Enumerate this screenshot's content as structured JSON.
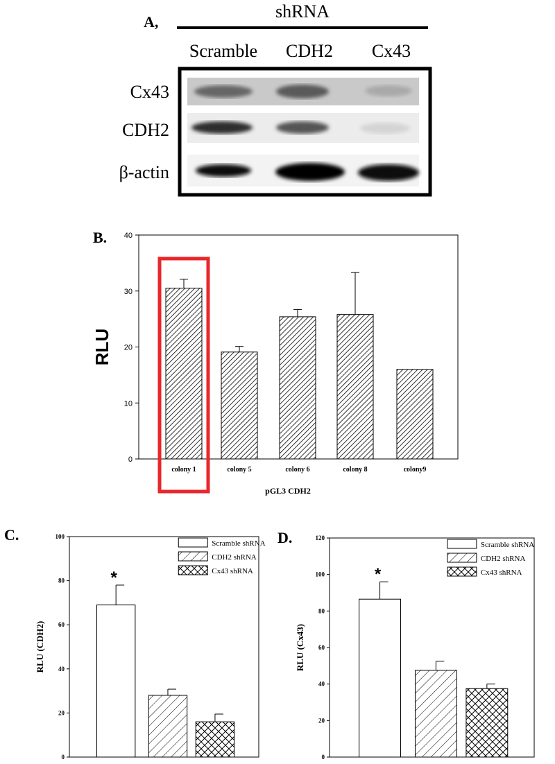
{
  "panel_a": {
    "label": "A,",
    "group_label": "shRNA",
    "columns": [
      "Scramble",
      "CDH2",
      "Cx43"
    ],
    "rows": [
      "Cx43",
      "CDH2",
      "β-actin"
    ]
  },
  "chart_data": [
    {
      "panel": "B.",
      "type": "bar",
      "categories": [
        "colony 1",
        "colony 5",
        "colony 6",
        "colony 8",
        "colony9"
      ],
      "values": [
        30.5,
        19.1,
        25.4,
        25.8,
        16.0
      ],
      "errors": [
        1.6,
        1.0,
        1.3,
        7.5,
        0
      ],
      "ylabel": "RLU",
      "xlabel": "pGL3 CDH2",
      "ylim": [
        0,
        40
      ],
      "yticks": [
        0,
        10,
        20,
        30,
        40
      ],
      "highlighted_category": "colony 1",
      "highlight_color": "#e8262b"
    },
    {
      "panel": "C.",
      "type": "bar",
      "categories": [
        "Scramble shRNA",
        "CDH2 shRNA",
        "Cx43 shRNA"
      ],
      "values": [
        69,
        28,
        16
      ],
      "errors": [
        9,
        2.8,
        3.5
      ],
      "ylabel": "RLU (CDH2)",
      "ylim": [
        0,
        100
      ],
      "yticks": [
        0,
        20,
        40,
        60,
        80,
        100
      ],
      "significance": [
        "*",
        "",
        ""
      ],
      "legend": [
        "Scramble shRNA",
        "CDH2 shRNA",
        "Cx43 shRNA"
      ],
      "legend_position": "top-right"
    },
    {
      "panel": "D.",
      "type": "bar",
      "categories": [
        "Scramble shRNA",
        "CDH2 shRNA",
        "Cx43 shRNA"
      ],
      "values": [
        86.5,
        47.5,
        37.5
      ],
      "errors": [
        9.5,
        5,
        2.5
      ],
      "ylabel": "RLU (Cx43)",
      "ylim": [
        0,
        120
      ],
      "yticks": [
        0,
        20,
        40,
        60,
        80,
        100,
        120
      ],
      "significance": [
        "*",
        "",
        ""
      ],
      "legend": [
        "Scramble shRNA",
        "CDH2 shRNA",
        "Cx43 shRNA"
      ],
      "legend_position": "top-right"
    }
  ]
}
